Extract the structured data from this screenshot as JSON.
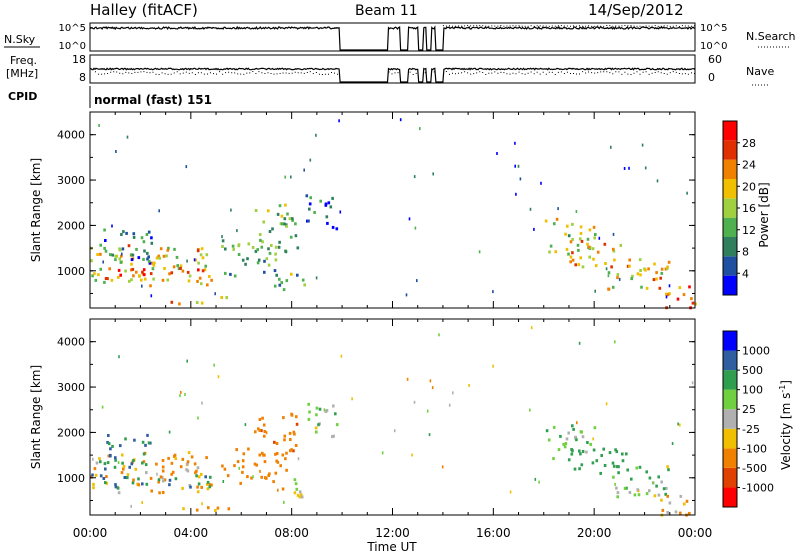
{
  "header": {
    "station": "Halley (fitACF)",
    "beam": "Beam 11",
    "date": "14/Sep/2012"
  },
  "nsky_panel": {
    "left_label": "N.Sky",
    "left_ticks": [
      "10^5",
      "10^0"
    ],
    "right_ticks": [
      "10^5",
      "10^0"
    ],
    "right_label": "N.Search"
  },
  "freq_panel": {
    "left_label_1": "Freq.",
    "left_label_2": "[MHz]",
    "left_ticks": [
      "18",
      "8"
    ],
    "right_ticks": [
      "60",
      "0"
    ],
    "right_label": "Nave"
  },
  "cpid": {
    "label": "CPID",
    "value": "normal (fast) 151"
  },
  "colors": {
    "power_scale": [
      "#0000ff",
      "#1f4fa0",
      "#2f7f5f",
      "#4fb04f",
      "#a0d040",
      "#f0c000",
      "#f08000",
      "#e03000",
      "#ff0000"
    ],
    "velocity_scale": [
      "#ff0000",
      "#e04000",
      "#f08000",
      "#f0c000",
      "#b0b0b0",
      "#6fd040",
      "#2f9f4f",
      "#2f5fa0",
      "#0000ff"
    ]
  },
  "chart_data": [
    {
      "type": "heatmap",
      "title": "",
      "xlabel": "Time UT",
      "ylabel": "Slant Range [km]",
      "x_ticks": [
        "00:00",
        "04:00",
        "08:00",
        "12:00",
        "16:00",
        "20:00",
        "00:00"
      ],
      "x_range_hours": [
        0,
        24
      ],
      "y_ticks": [
        "1000",
        "2000",
        "3000",
        "4000"
      ],
      "y_range_km": [
        180,
        4500
      ],
      "colorbar": {
        "label": "Power [dB]",
        "ticks": [
          "4",
          "8",
          "12",
          "16",
          "20",
          "24",
          "28"
        ],
        "range": [
          0,
          32
        ]
      },
      "scatter_regions": [
        {
          "t_start": 0.0,
          "t_end": 4.8,
          "r_min": 700,
          "r_max": 1600,
          "value": 18
        },
        {
          "t_start": 0.0,
          "t_end": 4.8,
          "r_min": 800,
          "r_max": 1100,
          "value": 24
        },
        {
          "t_start": 0.3,
          "t_end": 2.5,
          "r_min": 1200,
          "r_max": 2000,
          "value": 8
        },
        {
          "t_start": 3.0,
          "t_end": 5.5,
          "r_min": 300,
          "r_max": 450,
          "value": 22
        },
        {
          "t_start": 5.2,
          "t_end": 7.8,
          "r_min": 900,
          "r_max": 1700,
          "value": 12
        },
        {
          "t_start": 6.5,
          "t_end": 8.2,
          "r_min": 1500,
          "r_max": 2500,
          "value": 14
        },
        {
          "t_start": 7.0,
          "t_end": 8.5,
          "r_min": 600,
          "r_max": 1000,
          "value": 12
        },
        {
          "t_start": 8.5,
          "t_end": 9.8,
          "r_min": 1900,
          "r_max": 2700,
          "value": 6
        },
        {
          "t_start": 18.0,
          "t_end": 20.0,
          "r_min": 1400,
          "r_max": 2200,
          "value": 16
        },
        {
          "t_start": 19.0,
          "t_end": 21.5,
          "r_min": 1100,
          "r_max": 1700,
          "value": 22
        },
        {
          "t_start": 20.5,
          "t_end": 23.0,
          "r_min": 600,
          "r_max": 1300,
          "value": 20
        },
        {
          "t_start": 22.5,
          "t_end": 24.0,
          "r_min": 200,
          "r_max": 700,
          "value": 26
        }
      ]
    },
    {
      "type": "heatmap",
      "title": "",
      "xlabel": "Time UT",
      "ylabel": "Slant Range [km]",
      "x_ticks": [
        "00:00",
        "04:00",
        "08:00",
        "12:00",
        "16:00",
        "20:00",
        "00:00"
      ],
      "x_range_hours": [
        0,
        24
      ],
      "y_ticks": [
        "1000",
        "2000",
        "3000",
        "4000"
      ],
      "y_range_km": [
        180,
        4500
      ],
      "colorbar": {
        "label": "Velocity [m s^-1]",
        "ticks": [
          "1000",
          "500",
          "100",
          "25",
          "-25",
          "-100",
          "-500",
          "-1000"
        ]
      },
      "scatter_regions": [
        {
          "t_start": 0.0,
          "t_end": 4.8,
          "r_min": 700,
          "r_max": 1600,
          "value": -100
        },
        {
          "t_start": 0.0,
          "t_end": 4.8,
          "r_min": 800,
          "r_max": 1100,
          "value": 400
        },
        {
          "t_start": 0.3,
          "t_end": 2.5,
          "r_min": 1200,
          "r_max": 2000,
          "value": 600
        },
        {
          "t_start": 3.0,
          "t_end": 5.5,
          "r_min": 300,
          "r_max": 450,
          "value": -60
        },
        {
          "t_start": 5.2,
          "t_end": 7.8,
          "r_min": 900,
          "r_max": 1700,
          "value": -300
        },
        {
          "t_start": 6.5,
          "t_end": 8.2,
          "r_min": 1500,
          "r_max": 2500,
          "value": -400
        },
        {
          "t_start": 7.0,
          "t_end": 8.5,
          "r_min": 600,
          "r_max": 1000,
          "value": -60
        },
        {
          "t_start": 8.5,
          "t_end": 9.8,
          "r_min": 1900,
          "r_max": 2700,
          "value": 60
        },
        {
          "t_start": 18.0,
          "t_end": 20.0,
          "r_min": 1400,
          "r_max": 2200,
          "value": 80
        },
        {
          "t_start": 19.0,
          "t_end": 21.5,
          "r_min": 1100,
          "r_max": 1700,
          "value": 200
        },
        {
          "t_start": 20.5,
          "t_end": 23.0,
          "r_min": 600,
          "r_max": 1300,
          "value": 60
        },
        {
          "t_start": 22.5,
          "t_end": 24.0,
          "r_min": 200,
          "r_max": 700,
          "value": -80
        }
      ]
    }
  ]
}
